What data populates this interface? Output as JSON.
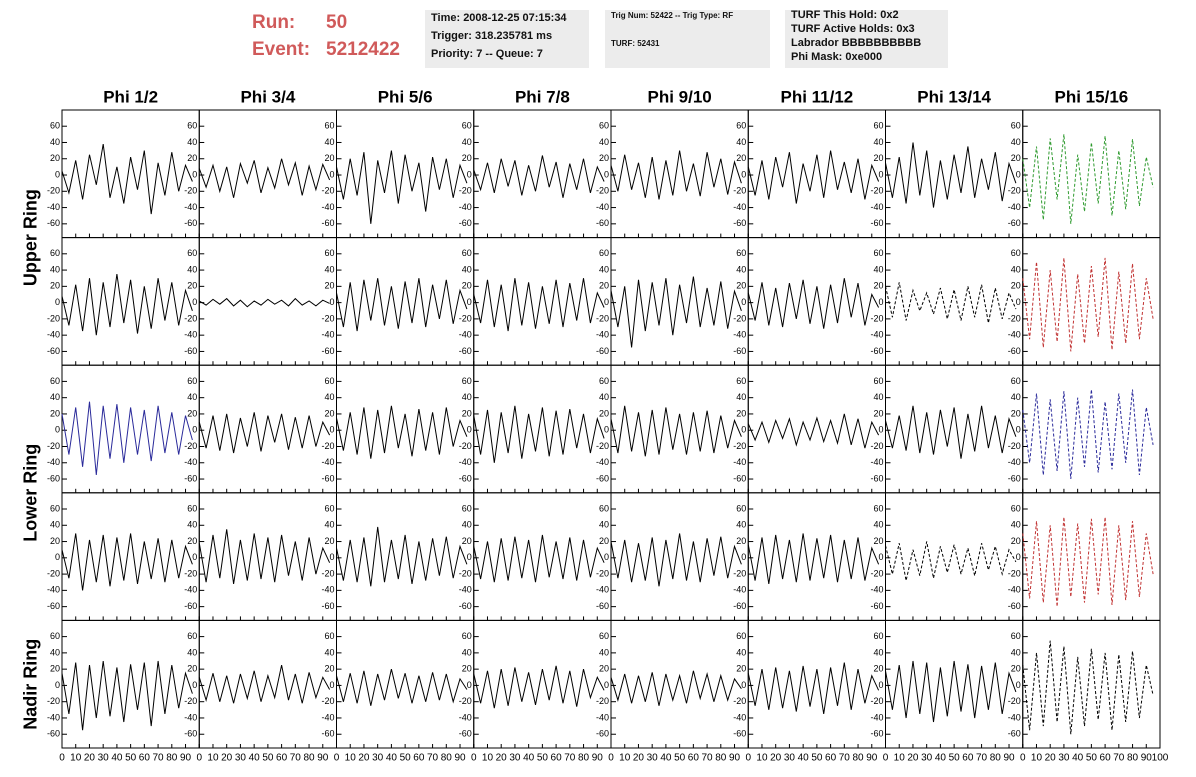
{
  "header": {
    "run_label": "Run:",
    "run": "50",
    "event_label": "Event:",
    "event": "5212422",
    "boxes": [
      [
        "Time: 2008-12-25 07:15:34",
        "Trigger: 318.235781 ms",
        "Priority: 7 -- Queue: 7"
      ],
      [
        "Trig Num: 52422 -- Trig Type: RF",
        "TURF: 52431"
      ],
      [
        "TURF This Hold: 0x2",
        "TURF Active Holds: 0x3",
        "Labrador BBBBBBBBBB",
        "Phi Mask: 0xe000"
      ]
    ]
  },
  "chart_data": {
    "type": "line",
    "columns": [
      "Phi 1/2",
      "Phi 3/4",
      "Phi 5/6",
      "Phi 7/8",
      "Phi 9/10",
      "Phi 11/12",
      "Phi 13/14",
      "Phi 15/16"
    ],
    "row_labels": [
      "Upper Ring",
      "Lower Ring",
      "Nadir Ring"
    ],
    "xlim": [
      0,
      100
    ],
    "xticks": [
      0,
      10,
      20,
      30,
      40,
      50,
      60,
      70,
      80,
      90,
      100
    ],
    "ylim": [
      -72,
      75
    ],
    "yticks": [
      -60,
      -40,
      -20,
      0,
      20,
      40,
      60
    ],
    "x": [
      0,
      5,
      10,
      15,
      20,
      25,
      30,
      35,
      40,
      45,
      50,
      55,
      60,
      65,
      70,
      75,
      80,
      85,
      90,
      95
    ],
    "panels": [
      [
        {
          "color": "#000000",
          "values": [
            5,
            -22,
            18,
            -30,
            25,
            -12,
            38,
            -28,
            10,
            -35,
            22,
            -18,
            30,
            -48,
            15,
            -25,
            28,
            -20,
            12,
            -8
          ]
        },
        {
          "color": "#000000",
          "values": [
            8,
            -15,
            12,
            -20,
            10,
            -28,
            14,
            -10,
            18,
            -22,
            9,
            -16,
            20,
            -12,
            15,
            -25,
            11,
            -18,
            13,
            -6
          ]
        },
        {
          "color": "#000000",
          "values": [
            10,
            -30,
            20,
            -25,
            28,
            -60,
            18,
            -22,
            30,
            -35,
            25,
            -20,
            15,
            -45,
            22,
            -18,
            20,
            -28,
            12,
            -10
          ]
        },
        {
          "color": "#000000",
          "values": [
            6,
            -18,
            15,
            -22,
            20,
            -14,
            18,
            -25,
            12,
            -20,
            24,
            -15,
            16,
            -28,
            14,
            -18,
            20,
            -22,
            10,
            -8
          ]
        },
        {
          "color": "#000000",
          "values": [
            12,
            -20,
            25,
            -18,
            15,
            -28,
            22,
            -30,
            18,
            -25,
            30,
            -20,
            14,
            -26,
            28,
            -15,
            20,
            -24,
            16,
            -10
          ]
        },
        {
          "color": "#000000",
          "values": [
            10,
            -25,
            18,
            -30,
            22,
            -15,
            28,
            -35,
            14,
            -20,
            25,
            -28,
            30,
            -18,
            16,
            -22,
            20,
            -30,
            12,
            -8
          ]
        },
        {
          "color": "#000000",
          "values": [
            15,
            -28,
            22,
            -35,
            40,
            -25,
            30,
            -40,
            18,
            -30,
            25,
            -22,
            35,
            -28,
            20,
            -18,
            28,
            -32,
            14,
            -10
          ]
        },
        {
          "color": "#2e9a2e",
          "line_style": "dashed",
          "values": [
            20,
            -40,
            35,
            -55,
            45,
            -30,
            50,
            -60,
            25,
            -45,
            40,
            -35,
            48,
            -50,
            30,
            -42,
            44,
            -38,
            22,
            -15
          ]
        }
      ],
      [
        {
          "color": "#000000",
          "values": [
            8,
            -28,
            22,
            -35,
            30,
            -40,
            25,
            -30,
            35,
            -25,
            28,
            -38,
            20,
            -32,
            30,
            -22,
            25,
            -28,
            15,
            -10
          ]
        },
        {
          "color": "#000000",
          "values": [
            2,
            -3,
            4,
            -2,
            5,
            -4,
            3,
            -5,
            2,
            -3,
            4,
            -2,
            3,
            -4,
            5,
            -3,
            2,
            -4,
            3,
            -1
          ]
        },
        {
          "color": "#000000",
          "values": [
            12,
            -30,
            25,
            -35,
            28,
            -22,
            30,
            -28,
            20,
            -32,
            26,
            -25,
            30,
            -30,
            22,
            -20,
            28,
            -26,
            15,
            -8
          ]
        },
        {
          "color": "#000000",
          "values": [
            10,
            -25,
            28,
            -30,
            22,
            -35,
            30,
            -28,
            25,
            -32,
            20,
            -26,
            28,
            -30,
            24,
            -22,
            30,
            -25,
            12,
            -6
          ]
        },
        {
          "color": "#000000",
          "values": [
            15,
            -30,
            20,
            -55,
            28,
            -35,
            25,
            -28,
            30,
            -40,
            22,
            -25,
            32,
            -30,
            18,
            -28,
            26,
            -32,
            14,
            -10
          ]
        },
        {
          "color": "#000000",
          "values": [
            12,
            -22,
            25,
            -28,
            18,
            -30,
            24,
            -20,
            28,
            -26,
            20,
            -32,
            22,
            -25,
            30,
            -18,
            24,
            -28,
            10,
            -6
          ]
        },
        {
          "color": "#000000",
          "line_style": "dashed",
          "values": [
            20,
            -18,
            25,
            -22,
            15,
            -10,
            12,
            -14,
            18,
            -20,
            16,
            -22,
            20,
            -18,
            22,
            -25,
            18,
            -20,
            12,
            -8
          ]
        },
        {
          "color": "#c03030",
          "line_style": "dashed",
          "values": [
            30,
            -45,
            50,
            -55,
            40,
            -48,
            55,
            -60,
            35,
            -50,
            45,
            -42,
            55,
            -58,
            38,
            -50,
            48,
            -45,
            30,
            -20
          ]
        }
      ],
      [
        {
          "color": "#2a2a9a",
          "values": [
            20,
            -30,
            28,
            -45,
            35,
            -55,
            30,
            -35,
            32,
            -40,
            28,
            -30,
            25,
            -38,
            30,
            -28,
            22,
            -30,
            18,
            -12
          ]
        },
        {
          "color": "#000000",
          "values": [
            10,
            -22,
            18,
            -25,
            20,
            -28,
            15,
            -20,
            22,
            -26,
            18,
            -15,
            20,
            -24,
            16,
            -22,
            18,
            -20,
            10,
            -6
          ]
        },
        {
          "color": "#000000",
          "values": [
            15,
            -25,
            22,
            -30,
            28,
            -35,
            25,
            -28,
            30,
            -22,
            20,
            -32,
            26,
            -25,
            22,
            -30,
            28,
            -20,
            12,
            -8
          ]
        },
        {
          "color": "#000000",
          "values": [
            18,
            -30,
            25,
            -40,
            22,
            -28,
            30,
            -35,
            20,
            -26,
            28,
            -32,
            24,
            -30,
            26,
            -22,
            20,
            -28,
            14,
            -10
          ]
        },
        {
          "color": "#000000",
          "values": [
            14,
            -28,
            30,
            -26,
            22,
            -32,
            25,
            -30,
            28,
            -24,
            20,
            -30,
            22,
            -26,
            24,
            -28,
            18,
            -22,
            12,
            -8
          ]
        },
        {
          "color": "#000000",
          "values": [
            8,
            -12,
            10,
            -15,
            12,
            -10,
            14,
            -18,
            10,
            -12,
            15,
            -14,
            12,
            -16,
            20,
            -18,
            14,
            -22,
            10,
            -6
          ]
        },
        {
          "color": "#000000",
          "values": [
            12,
            -22,
            18,
            -25,
            30,
            -28,
            22,
            -30,
            25,
            -20,
            28,
            -35,
            20,
            -26,
            30,
            -22,
            18,
            -28,
            14,
            -8
          ]
        },
        {
          "color": "#2a2a9a",
          "line_style": "dashed",
          "values": [
            25,
            -40,
            45,
            -55,
            38,
            -50,
            48,
            -60,
            40,
            -45,
            50,
            -52,
            35,
            -48,
            45,
            -40,
            50,
            -55,
            28,
            -18
          ]
        }
      ],
      [
        {
          "color": "#000000",
          "values": [
            10,
            -25,
            30,
            -40,
            22,
            -30,
            28,
            -35,
            25,
            -28,
            30,
            -32,
            20,
            -26,
            24,
            -30,
            22,
            -25,
            14,
            -8
          ]
        },
        {
          "color": "#000000",
          "values": [
            18,
            -30,
            28,
            -25,
            35,
            -32,
            22,
            -28,
            30,
            -26,
            25,
            -30,
            28,
            -22,
            20,
            -28,
            25,
            -20,
            12,
            -6
          ]
        },
        {
          "color": "#000000",
          "values": [
            12,
            -28,
            22,
            -30,
            25,
            -35,
            38,
            -30,
            22,
            -26,
            28,
            -32,
            20,
            -28,
            24,
            -22,
            26,
            -25,
            14,
            -8
          ]
        },
        {
          "color": "#000000",
          "values": [
            14,
            -26,
            20,
            -30,
            24,
            -28,
            26,
            -25,
            22,
            -30,
            28,
            -24,
            20,
            -26,
            25,
            -28,
            22,
            -24,
            12,
            -6
          ]
        },
        {
          "color": "#000000",
          "values": [
            20,
            -25,
            22,
            -30,
            18,
            -28,
            25,
            -35,
            22,
            -26,
            30,
            -28,
            20,
            -30,
            24,
            -22,
            26,
            -25,
            14,
            -8
          ]
        },
        {
          "color": "#000000",
          "values": [
            16,
            -28,
            25,
            -32,
            28,
            -26,
            22,
            -30,
            30,
            -28,
            24,
            -25,
            28,
            -30,
            22,
            -26,
            25,
            -28,
            12,
            -8
          ]
        },
        {
          "color": "#000000",
          "line_style": "dashed",
          "values": [
            15,
            -20,
            18,
            -28,
            10,
            -22,
            20,
            -25,
            14,
            -18,
            16,
            -20,
            12,
            -22,
            18,
            -15,
            14,
            -20,
            10,
            -5
          ]
        },
        {
          "color": "#c03030",
          "line_style": "dashed",
          "values": [
            30,
            -50,
            45,
            -55,
            40,
            -60,
            50,
            -48,
            42,
            -55,
            48,
            -45,
            50,
            -58,
            40,
            -52,
            45,
            -48,
            30,
            -20
          ]
        }
      ],
      [
        {
          "color": "#000000",
          "values": [
            15,
            -35,
            28,
            -55,
            25,
            -40,
            30,
            -38,
            22,
            -45,
            26,
            -30,
            28,
            -50,
            30,
            -35,
            25,
            -28,
            15,
            -10
          ]
        },
        {
          "color": "#000000",
          "values": [
            10,
            -18,
            15,
            -20,
            12,
            -22,
            14,
            -16,
            18,
            -20,
            12,
            -15,
            25,
            -18,
            14,
            -22,
            16,
            -15,
            10,
            -5
          ]
        },
        {
          "color": "#000000",
          "values": [
            12,
            -20,
            15,
            -22,
            18,
            -25,
            14,
            -18,
            20,
            -16,
            15,
            -22,
            12,
            -20,
            16,
            -18,
            14,
            -20,
            8,
            -5
          ]
        },
        {
          "color": "#000000",
          "values": [
            14,
            -22,
            18,
            -28,
            20,
            -25,
            22,
            -20,
            16,
            -24,
            20,
            -18,
            24,
            -22,
            18,
            -26,
            20,
            -15,
            10,
            -6
          ]
        },
        {
          "color": "#000000",
          "values": [
            10,
            -18,
            14,
            -22,
            12,
            -20,
            16,
            -25,
            14,
            -18,
            12,
            -22,
            18,
            -16,
            14,
            -20,
            12,
            -18,
            8,
            -4
          ]
        },
        {
          "color": "#000000",
          "values": [
            15,
            -25,
            20,
            -30,
            22,
            -28,
            18,
            -32,
            24,
            -26,
            20,
            -35,
            22,
            -25,
            28,
            -30,
            20,
            -22,
            12,
            -6
          ]
        },
        {
          "color": "#000000",
          "values": [
            18,
            -30,
            25,
            -40,
            30,
            -35,
            28,
            -45,
            22,
            -38,
            30,
            -32,
            26,
            -40,
            24,
            -30,
            28,
            -35,
            15,
            -8
          ]
        },
        {
          "color": "#000000",
          "line_style": "dashed",
          "values": [
            25,
            -55,
            40,
            -50,
            55,
            -45,
            48,
            -60,
            35,
            -50,
            45,
            -42,
            40,
            -55,
            38,
            -45,
            42,
            -40,
            25,
            -12
          ]
        }
      ]
    ]
  }
}
